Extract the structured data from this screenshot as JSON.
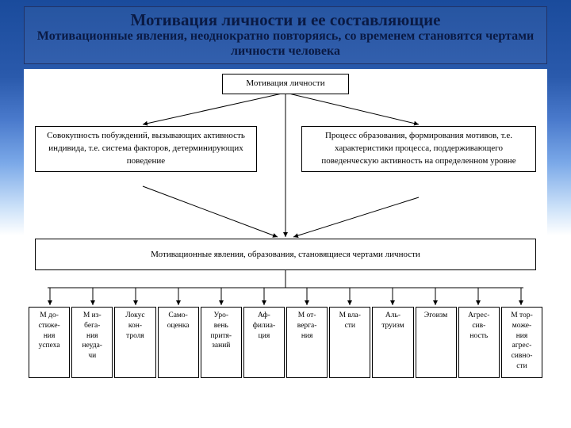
{
  "header": {
    "title": "Мотивация личности и ее составляющие",
    "subtitle": "Мотивационные явления, неоднократно повторяясь, со временем становятся чертами личности человека"
  },
  "diagram": {
    "type": "tree",
    "background_color": "#ffffff",
    "border_color": "#000000",
    "text_color": "#000000",
    "font_family": "Times New Roman",
    "root": {
      "label": "Мотивация личности",
      "fontsize": 11
    },
    "branches": [
      {
        "label": "Совокупность побуждений, вызывающих активность индивида, т.е. система факторов, детерминирующих поведение",
        "fontsize": 11
      },
      {
        "label": "Процесс образования, формирования мотивов, т.е. характеристики процесса, поддерживающего поведенческую активность на определенном уровне",
        "fontsize": 11
      }
    ],
    "mid": {
      "label": "Мотивационные явления, образования, становящиеся чертами личности",
      "fontsize": 11
    },
    "leaves": [
      {
        "label": "М до-\nстиже-\nния\nуспеха"
      },
      {
        "label": "М из-\nбега-\nния\nнеуда-\nчи"
      },
      {
        "label": "Локус\nкон-\nтроля"
      },
      {
        "label": "Само-\nоценка"
      },
      {
        "label": "Уро-\nвень\nпритя-\nзаний"
      },
      {
        "label": "Аф-\nфилиа-\nция"
      },
      {
        "label": "М от-\nверга-\nния"
      },
      {
        "label": "М вла-\nсти"
      },
      {
        "label": "Аль-\nтруизм"
      },
      {
        "label": "Эгоизм"
      },
      {
        "label": "Агрес-\nсив-\nность"
      },
      {
        "label": "М тор-\nможе-\nния\nагрес-\nсивно-\nсти"
      }
    ],
    "leaf_fontsize": 9.5,
    "connector_color": "#000000",
    "connector_width": 1,
    "arrowhead": true
  },
  "slide_bg_gradient": [
    "#1a4b9c",
    "#2a5aac",
    "#4a7acc",
    "#7aa8e8",
    "#c8dff8",
    "#ffffff"
  ]
}
